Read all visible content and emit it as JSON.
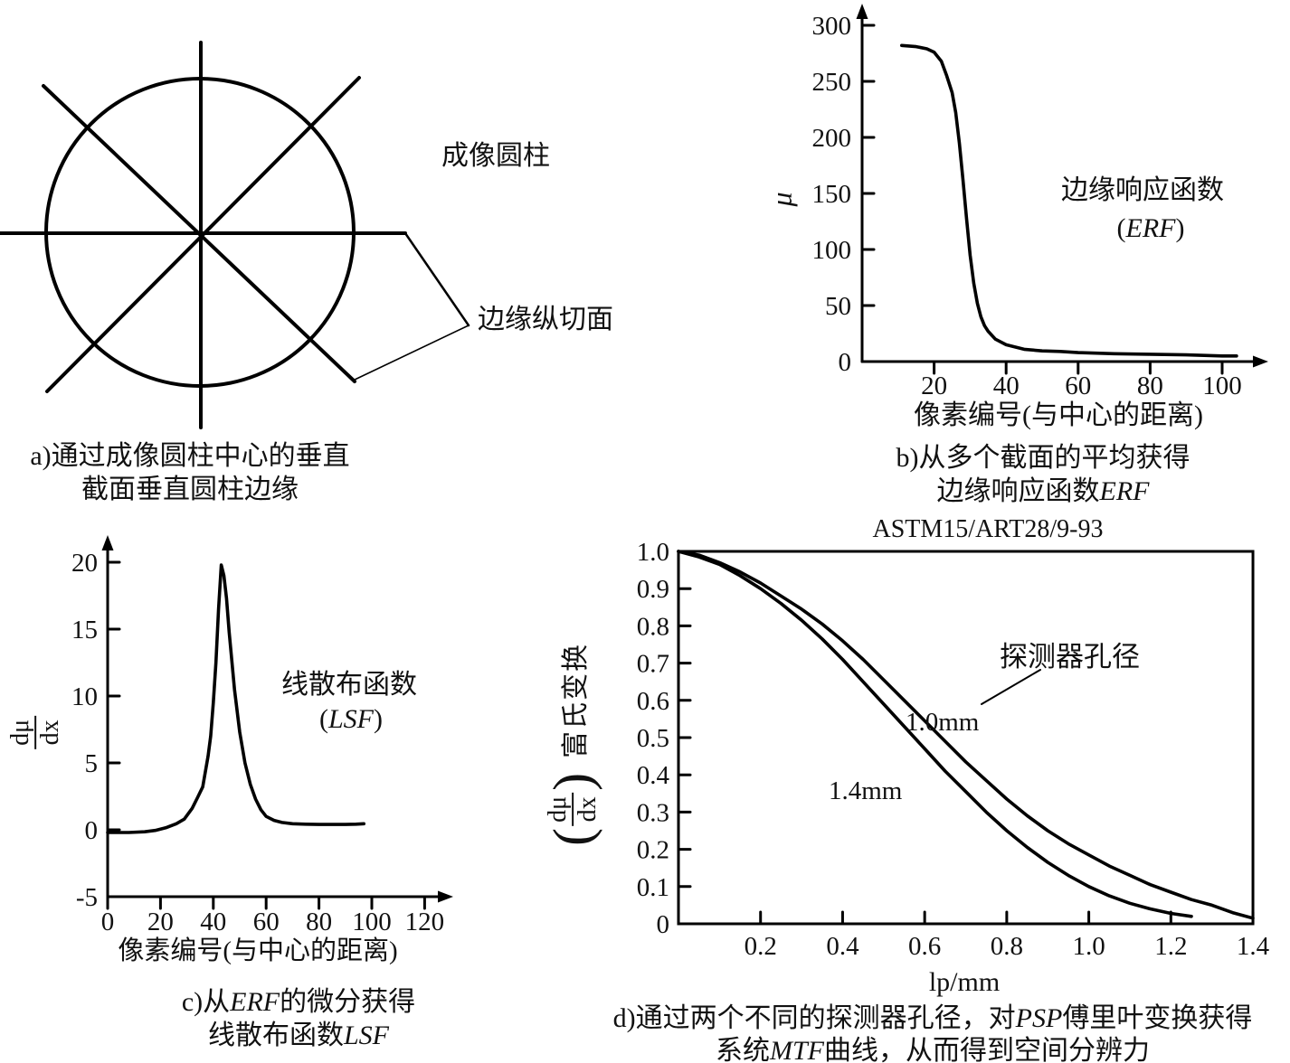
{
  "panel_a": {
    "cylinder_label": "成像圆柱",
    "section_label": "边缘纵切面"
  },
  "captions": {
    "a": [
      [
        {
          "t": "a)通过成像圆柱中心的垂直"
        }
      ],
      [
        {
          "t": "截面垂直圆柱边缘"
        }
      ]
    ],
    "b": [
      [
        {
          "t": "b)从多个截面的平均获得"
        }
      ],
      [
        {
          "t": "边缘响应函数"
        },
        {
          "t": "ERF",
          "i": true
        }
      ]
    ],
    "c": [
      [
        {
          "t": "c)从"
        },
        {
          "t": "ERF",
          "i": true
        },
        {
          "t": "的微分获得"
        }
      ],
      [
        {
          "t": "线散布函数"
        },
        {
          "t": "LSF",
          "i": true
        }
      ]
    ],
    "d": [
      [
        {
          "t": "d)通过两个不同的探测器孔径，对"
        },
        {
          "t": "PSP",
          "i": true
        },
        {
          "t": "傅里叶变换获得"
        }
      ],
      [
        {
          "t": "系统"
        },
        {
          "t": "MTF",
          "i": true
        },
        {
          "t": "曲线，从而得到空间分辨力"
        }
      ]
    ]
  },
  "chart_data": [
    {
      "id": "erf",
      "type": "line",
      "ylabel": "μ",
      "xlabel": "像素编号(与中心的距离)",
      "annotation_line1": "边缘响应函数",
      "annotation_line2": [
        {
          "t": "("
        },
        {
          "t": "ERF",
          "i": true
        },
        {
          "t": ")"
        }
      ],
      "x_ticks": [
        "20",
        "40",
        "60",
        "80",
        "100"
      ],
      "y_ticks": [
        "0",
        "50",
        "100",
        "150",
        "200",
        "250",
        "300"
      ],
      "xlim": [
        0,
        112
      ],
      "ylim": [
        0,
        300
      ],
      "grid": false,
      "series": [
        {
          "name": "ERF",
          "x": [
            11,
            15,
            18,
            20,
            22,
            23.5,
            25,
            26,
            27,
            28,
            29,
            30,
            31,
            32,
            33,
            34,
            35,
            37,
            40,
            45,
            50,
            55,
            60,
            70,
            80,
            90,
            100,
            104
          ],
          "y": [
            282,
            281,
            279,
            276,
            268,
            255,
            240,
            222,
            195,
            163,
            128,
            95,
            70,
            52,
            40,
            32,
            27,
            20,
            15,
            11,
            9.5,
            9,
            8,
            7,
            6.5,
            6,
            5,
            5
          ]
        }
      ]
    },
    {
      "id": "lsf",
      "type": "line",
      "ylabel_frac": {
        "num": "dμ",
        "den": "dx"
      },
      "xlabel": "像素编号(与中心的距离)",
      "annotation_line1": "线散布函数",
      "annotation_line2": [
        {
          "t": "("
        },
        {
          "t": "LSF",
          "i": true
        },
        {
          "t": ")"
        }
      ],
      "x_ticks": [
        "0",
        "20",
        "40",
        "60",
        "80",
        "100",
        "120"
      ],
      "y_ticks": [
        "-5",
        "0",
        "5",
        "10",
        "15",
        "20"
      ],
      "xlim": [
        0,
        128
      ],
      "ylim": [
        -5,
        21
      ],
      "grid": false,
      "series": [
        {
          "name": "LSF",
          "x": [
            0,
            8,
            14,
            18,
            22,
            26,
            29,
            32,
            34,
            36,
            38,
            39,
            40,
            41,
            42,
            43,
            44,
            45,
            46,
            48,
            50,
            52,
            54,
            56,
            58,
            60,
            63,
            66,
            70,
            75,
            80,
            85,
            90,
            94,
            97
          ],
          "y": [
            -0.2,
            -0.2,
            -0.15,
            -0.05,
            0.15,
            0.45,
            0.8,
            1.6,
            2.4,
            3.2,
            5.5,
            7,
            9.5,
            12.5,
            16.5,
            19.8,
            19.0,
            17.3,
            14.8,
            10.5,
            7.3,
            5,
            3.4,
            2.3,
            1.5,
            1.0,
            0.7,
            0.55,
            0.45,
            0.42,
            0.4,
            0.4,
            0.4,
            0.42,
            0.45
          ]
        }
      ]
    },
    {
      "id": "mtf",
      "type": "line",
      "title": "ASTM15/ART28/9-93",
      "ylabel_frac": {
        "num": "dμ",
        "den": "dx"
      },
      "ylabel_suffix": "富氏变换",
      "xlabel": "lp/mm",
      "annotation": "探测器孔径",
      "x_ticks": [
        "0.2",
        "0.4",
        "0.6",
        "0.8",
        "1.0",
        "1.2",
        "1.4"
      ],
      "y_ticks": [
        "0",
        "0.1",
        "0.2",
        "0.3",
        "0.4",
        "0.5",
        "0.6",
        "0.7",
        "0.8",
        "0.9",
        "1.0"
      ],
      "xlim": [
        0,
        1.4
      ],
      "ylim": [
        0,
        1.0
      ],
      "grid": false,
      "series": [
        {
          "name": "1.0mm",
          "x": [
            0,
            0.05,
            0.1,
            0.15,
            0.2,
            0.25,
            0.3,
            0.35,
            0.4,
            0.45,
            0.5,
            0.55,
            0.6,
            0.65,
            0.7,
            0.75,
            0.8,
            0.85,
            0.9,
            0.95,
            1.0,
            1.05,
            1.1,
            1.15,
            1.2,
            1.25,
            1.3,
            1.35,
            1.4
          ],
          "y": [
            1.0,
            0.99,
            0.97,
            0.945,
            0.915,
            0.88,
            0.845,
            0.805,
            0.76,
            0.71,
            0.655,
            0.6,
            0.545,
            0.49,
            0.435,
            0.385,
            0.335,
            0.29,
            0.25,
            0.215,
            0.185,
            0.155,
            0.13,
            0.105,
            0.085,
            0.065,
            0.05,
            0.03,
            0.015
          ]
        },
        {
          "name": "1.4mm",
          "x": [
            0,
            0.05,
            0.1,
            0.15,
            0.2,
            0.25,
            0.3,
            0.35,
            0.4,
            0.45,
            0.5,
            0.55,
            0.6,
            0.65,
            0.7,
            0.75,
            0.8,
            0.85,
            0.9,
            0.95,
            1.0,
            1.05,
            1.1,
            1.15,
            1.2,
            1.25
          ],
          "y": [
            1.0,
            0.985,
            0.965,
            0.935,
            0.9,
            0.86,
            0.815,
            0.765,
            0.71,
            0.65,
            0.59,
            0.53,
            0.47,
            0.41,
            0.355,
            0.3,
            0.25,
            0.205,
            0.165,
            0.13,
            0.1,
            0.075,
            0.055,
            0.04,
            0.028,
            0.02
          ]
        }
      ]
    }
  ]
}
